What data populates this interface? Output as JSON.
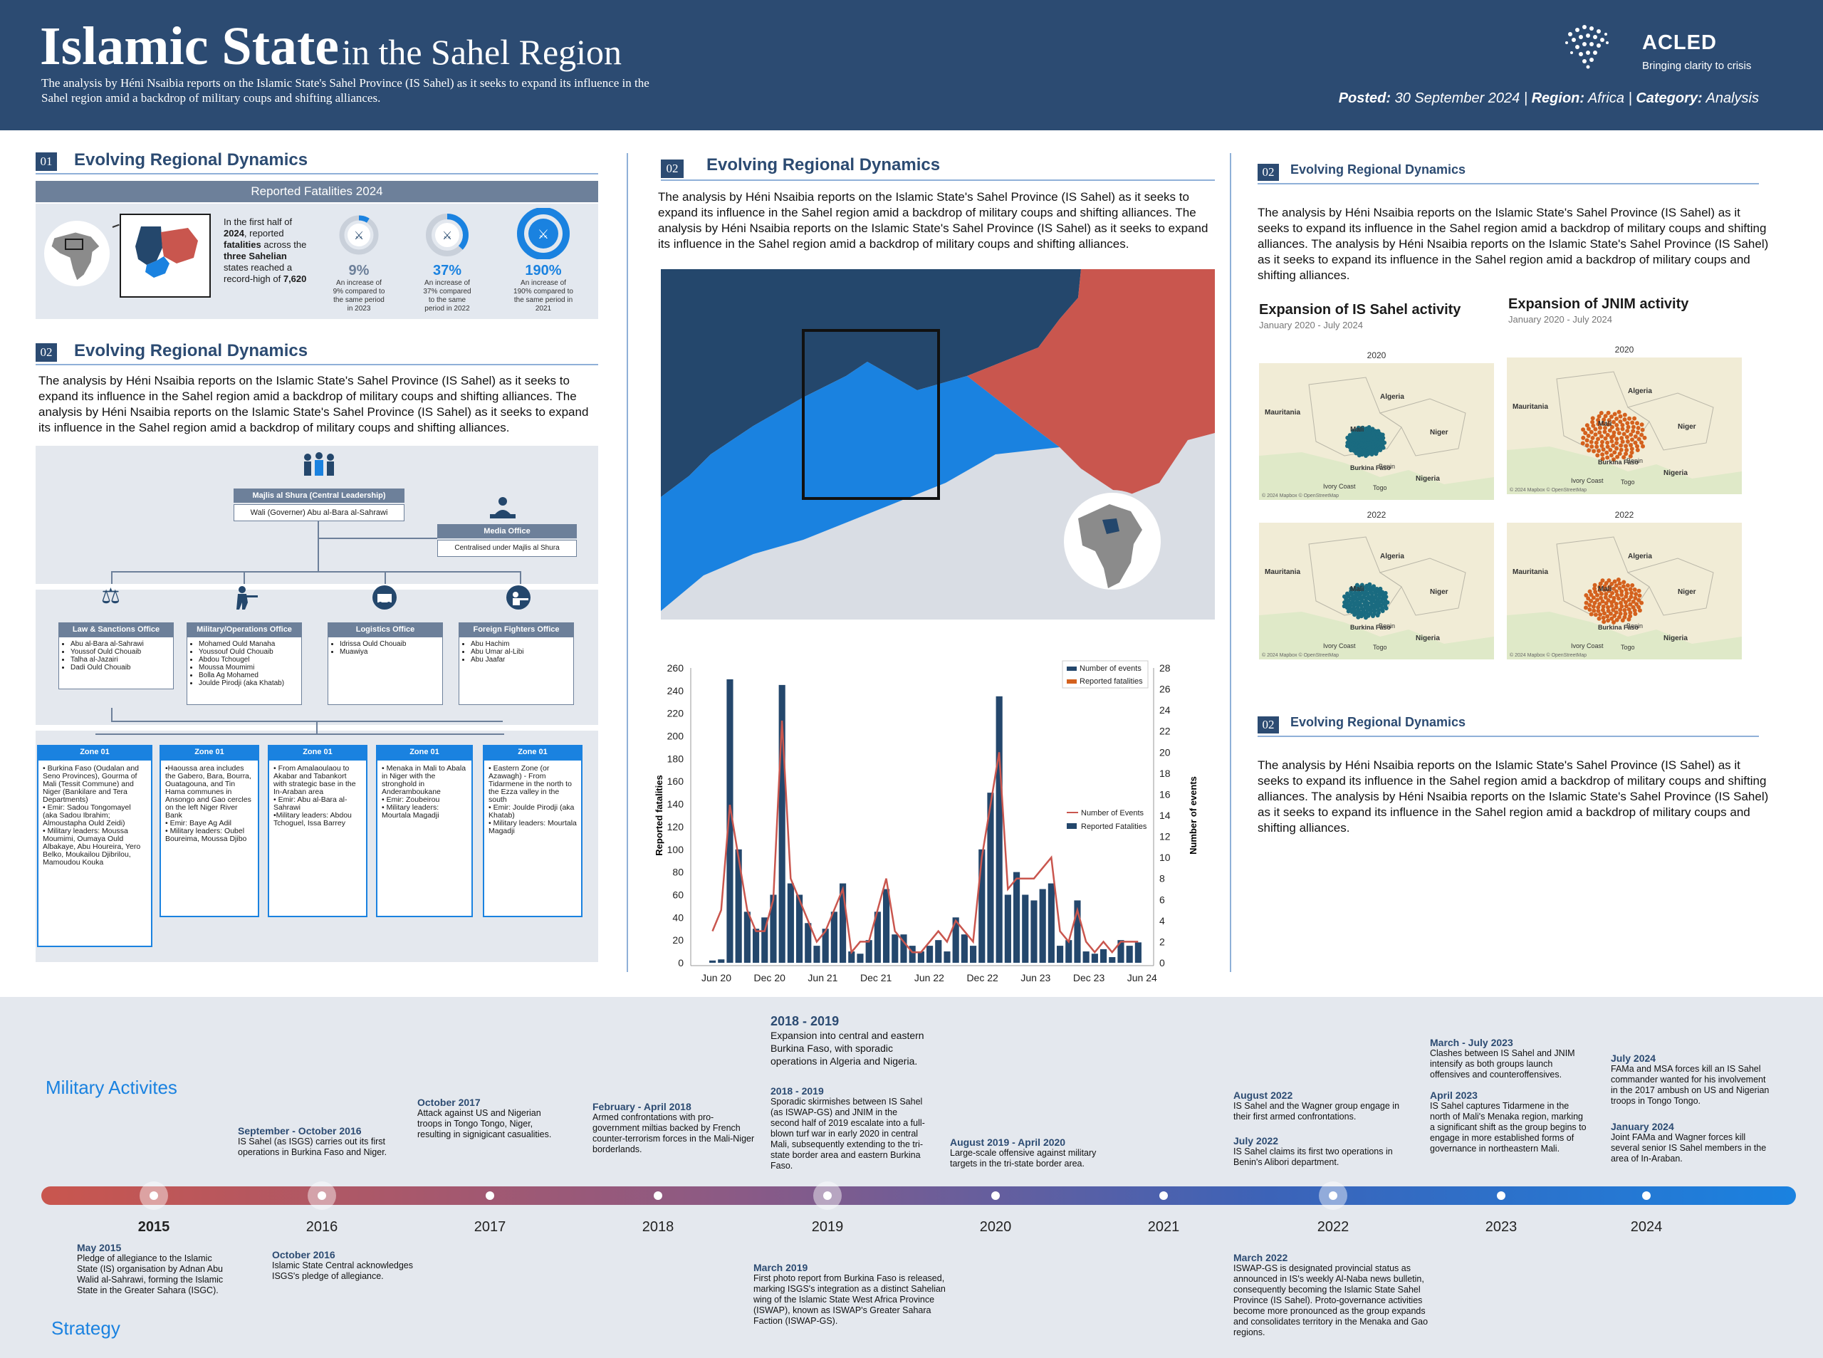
{
  "header": {
    "title_main": "Islamic State",
    "title_rest": "in the Sahel Region",
    "subtitle": "The analysis by Héni Nsaibia reports on the Islamic State's Sahel Province (IS Sahel) as it seeks to expand its influence in the Sahel region amid a backdrop of military coups and shifting alliances.",
    "logo_name": "ACLED",
    "logo_tagline": "Bringing clarity to crisis",
    "meta_posted_label": "Posted:",
    "meta_posted_value": "30 September 2024",
    "meta_region_label": "Region:",
    "meta_region_value": "Africa",
    "meta_category_label": "Category:",
    "meta_category_value": "Analysis",
    "meta_sep": "|"
  },
  "col1": {
    "sec1_num": "01",
    "sec1_title": "Evolving Regional Dynamics",
    "fat_title": "Reported Fatalities 2024",
    "fat_text_a": "In the first half of",
    "fat_text_b": "2024",
    "fat_text_c": ", reported",
    "fat_text_d": "fatalities",
    "fat_text_e": " across the",
    "fat_text_f": "three Sahelian",
    "fat_text_g": "states reached a record-high of",
    "fat_text_h": "7,620",
    "stats": [
      {
        "pct": "9%",
        "desc": "An increase of 9% compared to the same period in 2023",
        "fill": 0.09
      },
      {
        "pct": "37%",
        "desc": "An increase of 37% compared to the same period in 2022",
        "fill": 0.37
      },
      {
        "pct": "190%",
        "desc": "An increase of 190% compared to the same period in 2021",
        "fill": 1.0
      }
    ],
    "sec2_num": "02",
    "sec2_title": "Evolving Regional Dynamics",
    "sec2_text": "The analysis by Héni Nsaibia reports on the Islamic State's Sahel Province (IS Sahel) as it seeks to expand its influence in the Sahel region amid a backdrop of military coups and shifting alliances. The analysis by Héni Nsaibia reports on the Islamic State's Sahel Province (IS Sahel) as it seeks to expand its influence in the Sahel region amid a backdrop of military coups and shifting alliances.",
    "org": {
      "majlis_title": "Majlis al Shura (Central Leadership)",
      "majlis_sub": "Wali (Governer) Abu al-Bara al-Sahrawi",
      "media_title": "Media Office",
      "media_sub": "Centralised under Majlis al Shura",
      "offices": [
        {
          "title": "Law & Sanctions Office",
          "items": [
            "Abu al-Bara al-Sahrawi",
            "Youssof Ould Chouaib",
            "Talha al-Jazairi",
            "Dadi Ould Chouaib"
          ]
        },
        {
          "title": "Military/Operations Office",
          "items": [
            "Mohamed Ould Manaha",
            "Youssouf Ould Chouaib",
            "Abdou Tchougel",
            "Moussa Moumimi",
            "Bolla Ag Mohamed",
            "Joulde Pirodji (aka Khatab)"
          ]
        },
        {
          "title": "Logistics Office",
          "items": [
            "Idrissa Ould Chouaib",
            "Muawiya"
          ]
        },
        {
          "title": "Foreign Fighters Office",
          "items": [
            "Abu Hachim",
            "Abu Umar al-Libi",
            "Abu Jaafar"
          ]
        }
      ],
      "zones": [
        {
          "title": "Zone 01",
          "text": "• Burkina Faso (Oudalan and Seno Provinces), Gourma of Mali (Tessit Commune) and Niger (Bankilare and Tera Departments)\n• Emir: Sadou Tongomayel (aka Sadou Ibrahim; Almoustapha Ould Zeidi)\n• Military leaders: Moussa Moumimi, Oumaya Ould Albakaye, Abu Houreira, Yero Belko, Moukailou Djibrilou, Mamoudou Kouka"
        },
        {
          "title": "Zone 01",
          "text": "•Haoussa area includes the Gabero, Bara, Bourra, Ouatagouna, and Tin Hama communes in Ansongo and Gao cercles on the left Niger River Bank\n• Emir: Baye Ag Adil\n• Military leaders: Oubel Boureima, Moussa Djibo"
        },
        {
          "title": "Zone 01",
          "text": "• From Amalaoulaou to Akabar and Tabankort with strategic base in the In-Araban area\n• Emir: Abu al-Bara al-Sahrawi\n•Military leaders: Abdou Tchoguel, Issa Barrey"
        },
        {
          "title": "Zone 01",
          "text": "• Menaka in Mali to Abala in Niger with the stronghold in Anderamboukane\n• Emir: Zoubeirou\n• Military leaders: Mourtala Magadji"
        },
        {
          "title": "Zone 01",
          "text": "• Eastern Zone (or Azawagh) - From Tidarmene in the north to the Ezza valley in the south\n• Emir: Joulde Pirodji (aka Khatab)\n• Military leaders: Mourtala Magadji"
        }
      ]
    }
  },
  "col2": {
    "sec_num": "02",
    "sec_title": "Evolving Regional Dynamics",
    "text": "The analysis by Héni Nsaibia reports on the Islamic State's Sahel Province (IS Sahel) as it seeks to expand its influence in the Sahel region amid a backdrop of military coups and shifting alliances. The analysis by Héni Nsaibia reports on the Islamic State's Sahel Province (IS Sahel) as it seeks to expand its influence in the Sahel region amid a backdrop of military coups and shifting alliances.",
    "map_colors": {
      "mali": "#24476c",
      "burkina": "#1a82e0",
      "niger": "#c9564e",
      "other": "#d9dde4"
    }
  },
  "chart_data": {
    "type": "bar",
    "ylabel": "Reported fatalities",
    "y2label": "Number of events",
    "ylim": [
      0,
      260
    ],
    "y2lim": [
      0,
      28
    ],
    "yticks": [
      0,
      20,
      40,
      60,
      80,
      100,
      120,
      140,
      160,
      180,
      200,
      220,
      240,
      260
    ],
    "y2ticks": [
      0,
      2,
      4,
      6,
      8,
      10,
      12,
      14,
      16,
      18,
      20,
      22,
      24,
      26,
      28
    ],
    "xticks": [
      "Jun 20",
      "Dec 20",
      "Jun 21",
      "Dec 21",
      "Jun 22",
      "Dec 22",
      "Jun 23",
      "Dec 23",
      "Jun 24"
    ],
    "legend_top": [
      "Number of events",
      "Reported fatalities"
    ],
    "legend_mid": [
      "Number of Events",
      "Reported Fatalities"
    ],
    "colors": {
      "events": "#c9564e",
      "fatalities": "#24476c",
      "fat_orange": "#d4611e"
    },
    "series": [
      {
        "name": "Reported Fatalities",
        "values": [
          2,
          3,
          250,
          100,
          45,
          30,
          40,
          60,
          245,
          70,
          60,
          35,
          15,
          30,
          45,
          70,
          10,
          8,
          20,
          45,
          65,
          25,
          25,
          15,
          10,
          15,
          20,
          10,
          40,
          25,
          15,
          100,
          150,
          235,
          60,
          80,
          60,
          55,
          65,
          70,
          15,
          20,
          55,
          10,
          8,
          12,
          5,
          20,
          15,
          18
        ]
      },
      {
        "name": "Number of Events",
        "values": [
          3,
          5,
          15,
          10,
          5,
          3,
          3,
          6,
          23,
          8,
          6,
          4,
          2,
          3,
          5,
          7,
          1,
          2,
          2,
          5,
          8,
          3,
          2,
          1,
          1,
          2,
          3,
          2,
          4,
          3,
          2,
          10,
          15,
          20,
          7,
          8,
          8,
          8,
          9,
          10,
          3,
          2,
          5,
          2,
          1,
          2,
          1,
          2,
          2,
          2
        ]
      }
    ]
  },
  "col3": {
    "sec1_num": "02",
    "sec1_title": "Evolving Regional Dynamics",
    "sec1_text": "The analysis by Héni Nsaibia reports on the Islamic State's Sahel Province (IS Sahel) as it seeks to expand its influence in the Sahel region amid a backdrop of military coups and shifting alliances. The analysis by Héni Nsaibia reports on the Islamic State's Sahel Province (IS Sahel) as it seeks to expand its influence in the Sahel region amid a backdrop of military coups and shifting alliances.",
    "map1_title": "Expansion of IS Sahel activity",
    "map1_sub": "January 2020 - July 2024",
    "map2_title": "Expansion of JNIM activity",
    "map2_sub": "January 2020 - July 2024",
    "map_year_a": "2020",
    "map_year_b": "2022",
    "map_labels": {
      "mauritania": "Mauritania",
      "algeria": "Algeria",
      "mali": "Mali",
      "niger": "Niger",
      "burkina": "Burkina Faso",
      "nigeria": "Nigeria",
      "benin": "Benin",
      "ivory": "Ivory Coast",
      "togo": "Togo",
      "credit": "© 2024 Mapbox © OpenStreetMap"
    },
    "sec2_num": "02",
    "sec2_title": "Evolving Regional Dynamics",
    "sec2_text": "The analysis by Héni Nsaibia reports on the Islamic State's Sahel Province (IS Sahel) as it seeks to expand its influence in the Sahel region amid a backdrop of military coups and shifting alliances. The analysis by Héni Nsaibia reports on the Islamic State's Sahel Province (IS Sahel) as it seeks to expand its influence in the Sahel region amid a backdrop of military coups and shifting alliances.",
    "teal": "#1a6b80",
    "orange": "#d4611e"
  },
  "timeline": {
    "label_military": "Military Activites",
    "label_strategy": "Strategy",
    "years": [
      "2015",
      "2016",
      "2017",
      "2018",
      "2019",
      "2020",
      "2021",
      "2022",
      "2023",
      "2024"
    ],
    "events_top": [
      {
        "title": "September - October 2016",
        "text": "IS Sahel (as ISGS) carries out its first operations in Burkina Faso and Niger."
      },
      {
        "title": "October 2017",
        "text": "Attack against US and Nigerian troops in Tongo Tongo, Niger, resulting in signigicant casualities."
      },
      {
        "title": "February - April 2018",
        "text": "Armed confrontations with pro-government miltias backed by French counter-terrorism forces in the Mali-Niger borderlands."
      },
      {
        "title": "2018 - 2019",
        "text": "Expansion into central and eastern Burkina Faso, with sporadic operations in Algeria and Nigeria."
      },
      {
        "title": "2018 - 2019",
        "text": "Sporadic skirmishes between IS Sahel (as ISWAP-GS) and JNIM in the second half of 2019 escalate into a full-blown turf war in early 2020 in central Mali, subsequently extending to the tri-state border area and eastern Burkina Faso."
      },
      {
        "title": "August 2019 - April 2020",
        "text": "Large-scale offensive against military targets in the tri-state border area."
      },
      {
        "title": "August 2022",
        "text": "IS Sahel and the Wagner group engage in their first armed confrontations."
      },
      {
        "title": "July 2022",
        "text": "IS Sahel claims its first two operations in Benin's Alibori department."
      },
      {
        "title": "March - July 2023",
        "text": "Clashes between IS Sahel and JNIM intensify as both groups launch offensives and counteroffensives."
      },
      {
        "title": "April 2023",
        "text": "IS Sahel captures Tidarmene in the north of Mali's Menaka region, marking a significant shift as the group begins to engage in more established forms of governance in northeastern Mali."
      },
      {
        "title": "July 2024",
        "text": "FAMa and MSA forces kill an IS Sahel commander wanted for his involvement in the 2017 ambush on US and Nigerian troops in Tongo Tongo."
      },
      {
        "title": "January 2024",
        "text": "Joint FAMa and Wagner forces kill several senior IS Sahel members in the area of In-Araban."
      }
    ],
    "events_bottom": [
      {
        "title": "May 2015",
        "text": "Pledge of allegiance to the Islamic State (IS) organisation by Adnan Abu Walid al-Sahrawi, forming the Islamic State in the Greater Sahara (ISGC)."
      },
      {
        "title": "October 2016",
        "text": "Islamic State Central acknowledges ISGS's pledge of allegiance."
      },
      {
        "title": "March 2019",
        "text": "First photo report from Burkina Faso is released, marking ISGS's integration as a distinct Sahelian wing of the Islamic State West Africa Province (ISWAP), known as ISWAP's Greater Sahara Faction (ISWAP-GS)."
      },
      {
        "title": "March 2022",
        "text": "ISWAP-GS is designated provincial status as announced in IS's weekly Al-Naba news bulletin, consequently becoming the Islamic State Sahel Province (IS Sahel). Proto-governance activities become more pronounced as the group expands and consolidates territory in the Menaka and Gao regions."
      }
    ]
  }
}
